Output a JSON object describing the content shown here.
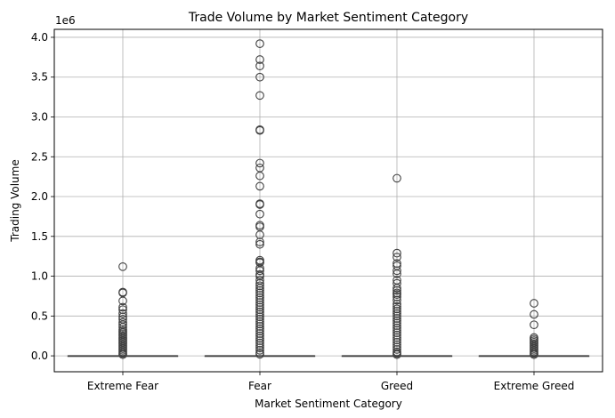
{
  "chart_data": {
    "type": "box",
    "title": "Trade Volume by Market Sentiment Category",
    "xlabel": "Market Sentiment Category",
    "ylabel": "Trading Volume",
    "y_offset_label": "1e6",
    "ylim": [
      -0.2,
      4.1
    ],
    "yticks": [
      0.0,
      0.5,
      1.0,
      1.5,
      2.0,
      2.5,
      3.0,
      3.5,
      4.0
    ],
    "ytick_labels": [
      "0.0",
      "0.5",
      "1.0",
      "1.5",
      "2.0",
      "2.5",
      "3.0",
      "3.5",
      "4.0"
    ],
    "grid": true,
    "legend": "none",
    "categories": [
      "Extreme Fear",
      "Fear",
      "Greed",
      "Extreme Greed"
    ],
    "boxes": [
      {
        "category": "Extreme Fear",
        "min": 0.0,
        "q1": 0.0,
        "median": 0.0,
        "q3": 0.0,
        "max": 0.0,
        "outliers": [
          1.12,
          0.8,
          0.79,
          0.69,
          0.61,
          0.58,
          0.53,
          0.49,
          0.46,
          0.42,
          0.39,
          0.36,
          0.33,
          0.31,
          0.29,
          0.27,
          0.25,
          0.23,
          0.21,
          0.19,
          0.17,
          0.15,
          0.13,
          0.11,
          0.09,
          0.07,
          0.05,
          0.03,
          0.015
        ]
      },
      {
        "category": "Fear",
        "min": 0.0,
        "q1": 0.0,
        "median": 0.0,
        "q3": 0.0,
        "max": 0.0,
        "outliers": [
          3.92,
          3.72,
          3.64,
          3.5,
          3.27,
          2.84,
          2.83,
          2.42,
          2.36,
          2.26,
          2.13,
          1.91,
          1.9,
          1.78,
          1.64,
          1.62,
          1.52,
          1.43,
          1.4,
          1.2,
          1.18,
          1.17,
          1.1,
          1.07,
          1.02,
          1.0,
          0.95,
          0.91,
          0.88,
          0.85,
          0.82,
          0.79,
          0.76,
          0.73,
          0.7,
          0.67,
          0.64,
          0.61,
          0.58,
          0.55,
          0.52,
          0.49,
          0.46,
          0.43,
          0.4,
          0.37,
          0.34,
          0.31,
          0.28,
          0.25,
          0.22,
          0.19,
          0.16,
          0.13,
          0.1,
          0.07,
          0.04,
          0.02
        ]
      },
      {
        "category": "Greed",
        "min": 0.0,
        "q1": 0.0,
        "median": 0.0,
        "q3": 0.0,
        "max": 0.0,
        "outliers": [
          2.23,
          1.29,
          1.24,
          1.16,
          1.13,
          1.07,
          1.03,
          0.95,
          0.91,
          0.85,
          0.82,
          0.79,
          0.77,
          0.74,
          0.7,
          0.65,
          0.62,
          0.59,
          0.56,
          0.53,
          0.5,
          0.47,
          0.44,
          0.41,
          0.38,
          0.35,
          0.32,
          0.29,
          0.26,
          0.23,
          0.2,
          0.17,
          0.14,
          0.11,
          0.08,
          0.05,
          0.03,
          0.015
        ]
      },
      {
        "category": "Extreme Greed",
        "min": 0.0,
        "q1": 0.0,
        "median": 0.0,
        "q3": 0.0,
        "max": 0.0,
        "outliers": [
          0.66,
          0.52,
          0.39,
          0.23,
          0.21,
          0.19,
          0.17,
          0.15,
          0.13,
          0.11,
          0.09,
          0.07,
          0.05,
          0.03,
          0.015
        ]
      }
    ],
    "colors": {
      "box_edge": "#3f3f3f",
      "grid": "#b0b0b0",
      "axis": "#000000"
    }
  }
}
